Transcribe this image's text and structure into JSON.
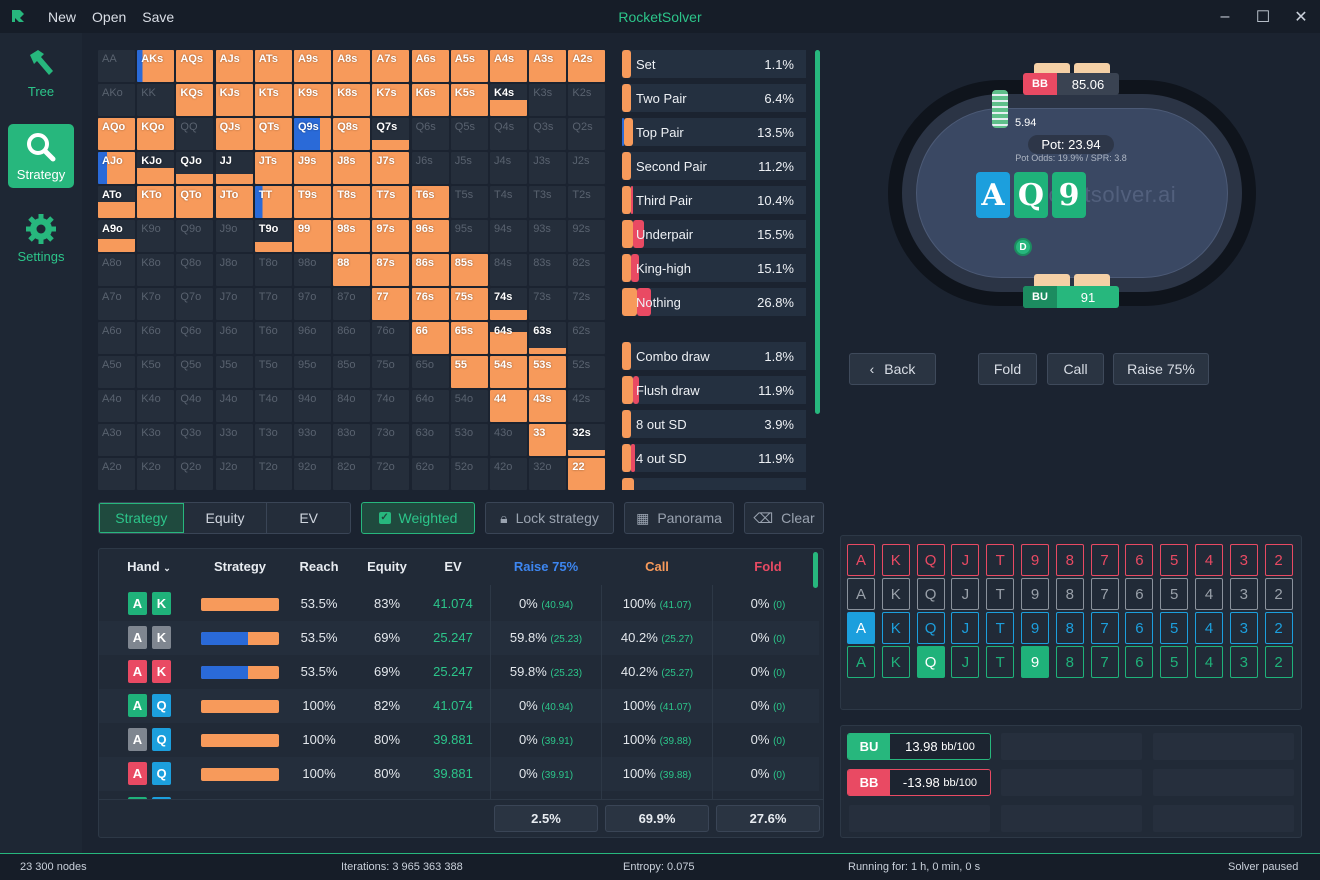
{
  "app": {
    "title": "RocketSolver",
    "menu": [
      "New",
      "Open",
      "Save"
    ]
  },
  "nav": [
    {
      "label": "Tree",
      "icon": "hammer-icon",
      "active": false
    },
    {
      "label": "Strategy",
      "icon": "search-icon",
      "active": true
    },
    {
      "label": "Settings",
      "icon": "gear-icon",
      "active": false
    }
  ],
  "colors": {
    "accent": "#27b77d",
    "raise": "#2a6ad8",
    "call": "#f79a5b",
    "fold": "#e94a63",
    "club": "#1fb27a",
    "diamond": "#1c9fdd",
    "heart": "#e94a63",
    "spade": "#7f8690"
  },
  "grid_labels": [
    [
      "AA",
      "AKs",
      "AQs",
      "AJs",
      "ATs",
      "A9s",
      "A8s",
      "A7s",
      "A6s",
      "A5s",
      "A4s",
      "A3s",
      "A2s"
    ],
    [
      "AKo",
      "KK",
      "KQs",
      "KJs",
      "KTs",
      "K9s",
      "K8s",
      "K7s",
      "K6s",
      "K5s",
      "K4s",
      "K3s",
      "K2s"
    ],
    [
      "AQo",
      "KQo",
      "QQ",
      "QJs",
      "QTs",
      "Q9s",
      "Q8s",
      "Q7s",
      "Q6s",
      "Q5s",
      "Q4s",
      "Q3s",
      "Q2s"
    ],
    [
      "AJo",
      "KJo",
      "QJo",
      "JJ",
      "JTs",
      "J9s",
      "J8s",
      "J7s",
      "J6s",
      "J5s",
      "J4s",
      "J3s",
      "J2s"
    ],
    [
      "ATo",
      "KTo",
      "QTo",
      "JTo",
      "TT",
      "T9s",
      "T8s",
      "T7s",
      "T6s",
      "T5s",
      "T4s",
      "T3s",
      "T2s"
    ],
    [
      "A9o",
      "K9o",
      "Q9o",
      "J9o",
      "T9o",
      "99",
      "98s",
      "97s",
      "96s",
      "95s",
      "94s",
      "93s",
      "92s"
    ],
    [
      "A8o",
      "K8o",
      "Q8o",
      "J8o",
      "T8o",
      "98o",
      "88",
      "87s",
      "86s",
      "85s",
      "84s",
      "83s",
      "82s"
    ],
    [
      "A7o",
      "K7o",
      "Q7o",
      "J7o",
      "T7o",
      "97o",
      "87o",
      "77",
      "76s",
      "75s",
      "74s",
      "73s",
      "72s"
    ],
    [
      "A6o",
      "K6o",
      "Q6o",
      "J6o",
      "T6o",
      "96o",
      "86o",
      "76o",
      "66",
      "65s",
      "64s",
      "63s",
      "62s"
    ],
    [
      "A5o",
      "K5o",
      "Q5o",
      "J5o",
      "T5o",
      "95o",
      "85o",
      "75o",
      "65o",
      "55",
      "54s",
      "53s",
      "52s"
    ],
    [
      "A4o",
      "K4o",
      "Q4o",
      "J4o",
      "T4o",
      "94o",
      "84o",
      "74o",
      "64o",
      "54o",
      "44",
      "43s",
      "42s"
    ],
    [
      "A3o",
      "K3o",
      "Q3o",
      "J3o",
      "T3o",
      "93o",
      "83o",
      "73o",
      "63o",
      "53o",
      "43o",
      "33",
      "32s"
    ],
    [
      "A2o",
      "K2o",
      "Q2o",
      "J2o",
      "T2o",
      "92o",
      "82o",
      "72o",
      "62o",
      "52o",
      "42o",
      "32o",
      "22"
    ]
  ],
  "categories": [
    {
      "name": "Set",
      "value": "1.1%",
      "call": 0.05,
      "fold": 0
    },
    {
      "name": "Two Pair",
      "value": "6.4%",
      "call": 0.05,
      "fold": 0
    },
    {
      "name": "Top Pair",
      "value": "13.5%",
      "call": 0.05,
      "fold": 0,
      "raise": 0.01
    },
    {
      "name": "Second Pair",
      "value": "11.2%",
      "call": 0.05,
      "fold": 0
    },
    {
      "name": "Third Pair",
      "value": "10.4%",
      "call": 0.05,
      "fold": 0.01
    },
    {
      "name": "Underpair",
      "value": "15.5%",
      "call": 0.06,
      "fold": 0.06
    },
    {
      "name": "King-high",
      "value": "15.1%",
      "call": 0.05,
      "fold": 0.04
    },
    {
      "name": "Nothing",
      "value": "26.8%",
      "call": 0.08,
      "fold": 0.08
    },
    {
      "name": "Combo draw",
      "value": "1.8%",
      "call": 0.05,
      "fold": 0
    },
    {
      "name": "Flush draw",
      "value": "11.9%",
      "call": 0.06,
      "fold": 0.03
    },
    {
      "name": "8 out SD",
      "value": "3.9%",
      "call": 0.05,
      "fold": 0
    },
    {
      "name": "4 out SD",
      "value": "11.9%",
      "call": 0.05,
      "fold": 0.02
    }
  ],
  "tabs": [
    "Strategy",
    "Equity",
    "EV"
  ],
  "tools": {
    "weighted": "Weighted",
    "lock": "Lock strategy",
    "panorama": "Panorama",
    "clear": "Clear"
  },
  "table": {
    "headers": {
      "hand": "Hand",
      "strategy": "Strategy",
      "reach": "Reach",
      "equity": "Equity",
      "ev": "EV",
      "raise": "Raise 75%",
      "call": "Call",
      "fold": "Fold"
    },
    "rows": [
      {
        "c1": "A",
        "s1": "club",
        "c2": "K",
        "s2": "club",
        "raise": 0,
        "reach": "53.5%",
        "equity": "83%",
        "ev": "41.074",
        "r": "0%",
        "rv": "(40.94)",
        "c": "100%",
        "cv": "(41.07)",
        "f": "0%",
        "fv": "(0)"
      },
      {
        "c1": "A",
        "s1": "spade",
        "c2": "K",
        "s2": "spade",
        "raise": 0.598,
        "reach": "53.5%",
        "equity": "69%",
        "ev": "25.247",
        "r": "59.8%",
        "rv": "(25.23)",
        "c": "40.2%",
        "cv": "(25.27)",
        "f": "0%",
        "fv": "(0)"
      },
      {
        "c1": "A",
        "s1": "heart",
        "c2": "K",
        "s2": "heart",
        "raise": 0.598,
        "reach": "53.5%",
        "equity": "69%",
        "ev": "25.247",
        "r": "59.8%",
        "rv": "(25.23)",
        "c": "40.2%",
        "cv": "(25.27)",
        "f": "0%",
        "fv": "(0)"
      },
      {
        "c1": "A",
        "s1": "club",
        "c2": "Q",
        "s2": "diamond",
        "raise": 0,
        "reach": "100%",
        "equity": "82%",
        "ev": "41.074",
        "r": "0%",
        "rv": "(40.94)",
        "c": "100%",
        "cv": "(41.07)",
        "f": "0%",
        "fv": "(0)"
      },
      {
        "c1": "A",
        "s1": "spade",
        "c2": "Q",
        "s2": "diamond",
        "raise": 0,
        "reach": "100%",
        "equity": "80%",
        "ev": "39.881",
        "r": "0%",
        "rv": "(39.91)",
        "c": "100%",
        "cv": "(39.88)",
        "f": "0%",
        "fv": "(0)"
      },
      {
        "c1": "A",
        "s1": "heart",
        "c2": "Q",
        "s2": "diamond",
        "raise": 0,
        "reach": "100%",
        "equity": "80%",
        "ev": "39.881",
        "r": "0%",
        "rv": "(39.91)",
        "c": "100%",
        "cv": "(39.88)",
        "f": "0%",
        "fv": "(0)"
      }
    ],
    "totals": [
      "2.5%",
      "69.9%",
      "27.6%"
    ]
  },
  "poker_table": {
    "bb": {
      "pos": "BB",
      "stack": "85.06"
    },
    "bu": {
      "pos": "BU",
      "stack": "91"
    },
    "bet": "5.94",
    "pot": "Pot: 23.94",
    "odds": "Pot Odds: 19.9%  /  SPR: 3.8",
    "dealer": "D",
    "watermark": "rocketsolver.ai",
    "board": [
      {
        "rank": "A",
        "suit": "diamond"
      },
      {
        "rank": "Q",
        "suit": "club"
      },
      {
        "rank": "9",
        "suit": "club"
      }
    ]
  },
  "actions": {
    "back": "Back",
    "fold": "Fold",
    "call": "Call",
    "raise": "Raise 75%"
  },
  "ranks": [
    "A",
    "K",
    "Q",
    "J",
    "T",
    "9",
    "8",
    "7",
    "6",
    "5",
    "4",
    "3",
    "2"
  ],
  "board_rows": [
    {
      "suit": "heart",
      "used": []
    },
    {
      "suit": "spade",
      "used": []
    },
    {
      "suit": "diamond",
      "used": [
        "A"
      ]
    },
    {
      "suit": "club",
      "used": [
        "Q",
        "9"
      ]
    }
  ],
  "ev_results": [
    {
      "pos": "BU",
      "value": "13.98",
      "unit": "bb/100",
      "color": "#27b77d"
    },
    {
      "pos": "BB",
      "value": "-13.98",
      "unit": "bb/100",
      "color": "#e94a63"
    }
  ],
  "status": {
    "nodes": "23 300 nodes",
    "iterations": "Iterations: 3 965 363 388",
    "entropy": "Entropy: 0.075",
    "running": "Running for: 1 h, 0 min, 0 s",
    "state": "Solver paused"
  }
}
